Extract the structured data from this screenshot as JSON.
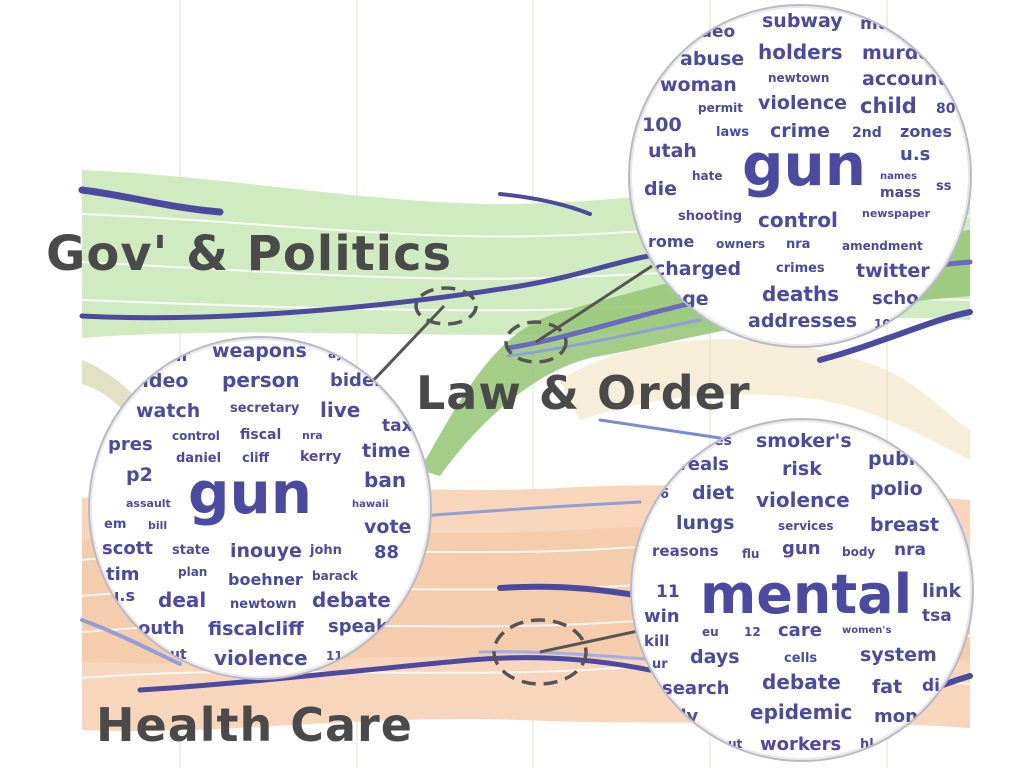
{
  "labels": {
    "gov": "Gov' & Politics",
    "law": "Law & Order",
    "health": "Health Care"
  },
  "clouds": {
    "gov": {
      "words": [
        "ar",
        "weapons",
        "ay",
        "video",
        "person",
        "biden",
        "watch",
        "secretary",
        "live",
        "tax",
        "pres",
        "control",
        "fiscal",
        "nra",
        "time",
        "daniel",
        "cliff",
        "kerry",
        "p2",
        "ban",
        "gun",
        "assault",
        "hawaii",
        "em",
        "bill",
        "vote",
        "scott",
        "state",
        "inouye",
        "john",
        "88",
        "tim",
        "plan",
        "boehner",
        "barack",
        "u.s",
        "deal",
        "newtown",
        "debate",
        "outh",
        "fiscalcliff",
        "speak",
        "ut",
        "violence",
        "11"
      ]
    },
    "law": {
      "words": [
        "ideo",
        "subway",
        "mu",
        "abuse",
        "holders",
        "murde",
        "woman",
        "newtown",
        "account",
        "permit",
        "violence",
        "child",
        "80",
        "100",
        "laws",
        "crime",
        "2nd",
        "zones",
        "utah",
        "gun",
        "u.s",
        "hate",
        "names",
        "die",
        "mass",
        "ss",
        "shooting",
        "control",
        "newspaper",
        "rome",
        "owners",
        "nra",
        "amendment",
        "charged",
        "crimes",
        "twitter",
        "rage",
        "deaths",
        "scho",
        "addresses",
        "10"
      ]
    },
    "health": {
      "words": [
        "es",
        "smoker's",
        "veals",
        "risk",
        "publ",
        "6",
        "diet",
        "violence",
        "polio",
        "lungs",
        "services",
        "breast",
        "reasons",
        "flu",
        "gun",
        "body",
        "nra",
        "11",
        "mental",
        "link",
        "win",
        "tsa",
        "kill",
        "eu",
        "12",
        "care",
        "women's",
        "ur",
        "days",
        "cells",
        "system",
        "search",
        "debate",
        "fat",
        "di",
        "ally",
        "epidemic",
        "mon",
        "ut",
        "workers",
        "hl"
      ]
    }
  },
  "colors": {
    "gov_stream": "#c6e6b4",
    "law_stream": "#8fc26c",
    "health_stream": "#f6d2b4",
    "gun_thread": "#4b4aa0",
    "word_text": "#4b4aa0",
    "label_text": "#4a4a4a"
  }
}
